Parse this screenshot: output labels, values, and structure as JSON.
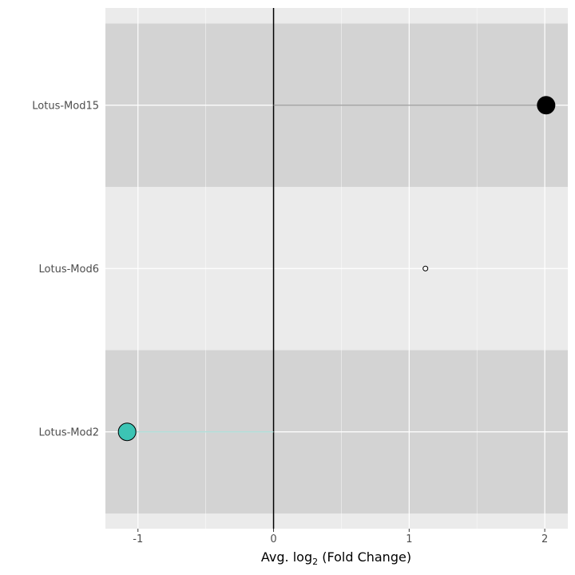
{
  "chart_data": {
    "type": "lollipop",
    "xlabel_main": "Avg. log",
    "xlabel_sub": "2",
    "xlabel_tail": " (Fold Change)",
    "xlim": [
      -1.24,
      2.17
    ],
    "xticks": [
      -1,
      0,
      1,
      2
    ],
    "xtick_labels": [
      "-1",
      "0",
      "1",
      "2"
    ],
    "categories": [
      "Lotus-Mod15",
      "Lotus-Mod6",
      "Lotus-Mod2"
    ],
    "points": [
      {
        "category": "Lotus-Mod15",
        "x": 2.01,
        "color": "#000000",
        "size": "large",
        "band": "dark"
      },
      {
        "category": "Lotus-Mod6",
        "x": 1.12,
        "color": "#ffffff",
        "size": "small",
        "band": "light"
      },
      {
        "category": "Lotus-Mod2",
        "x": -1.08,
        "color": "#3cc4b4",
        "size": "large",
        "band": "dark"
      }
    ],
    "colors": {
      "panel": "#ebebeb",
      "band_dark": "#d3d3d3",
      "grid": "#ffffff",
      "zero_line": "#000000",
      "segment_mod15": "#999999",
      "segment_mod2": "#a8dcd6"
    },
    "grid": true,
    "legend": "none"
  }
}
